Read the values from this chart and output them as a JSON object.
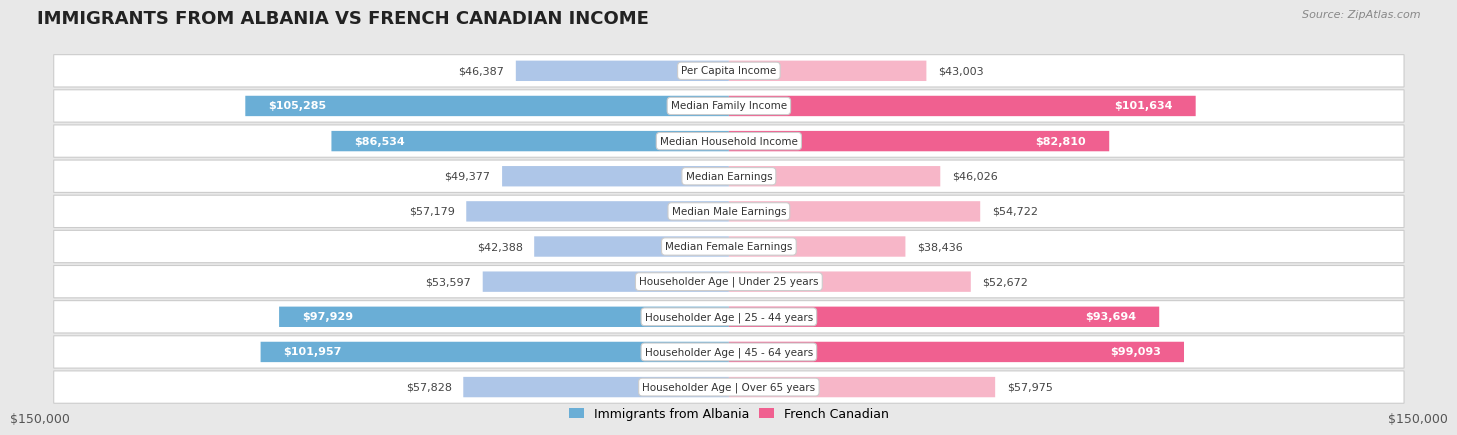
{
  "title": "IMMIGRANTS FROM ALBANIA VS FRENCH CANADIAN INCOME",
  "source": "Source: ZipAtlas.com",
  "categories": [
    "Per Capita Income",
    "Median Family Income",
    "Median Household Income",
    "Median Earnings",
    "Median Male Earnings",
    "Median Female Earnings",
    "Householder Age | Under 25 years",
    "Householder Age | 25 - 44 years",
    "Householder Age | 45 - 64 years",
    "Householder Age | Over 65 years"
  ],
  "albania_values": [
    46387,
    105285,
    86534,
    49377,
    57179,
    42388,
    53597,
    97929,
    101957,
    57828
  ],
  "french_canadian_values": [
    43003,
    101634,
    82810,
    46026,
    54722,
    38436,
    52672,
    93694,
    99093,
    57975
  ],
  "albania_color_light": "#aec6e8",
  "albania_color_dark": "#6aaed6",
  "french_color_light": "#f7b6c8",
  "french_color_dark": "#f06090",
  "albania_dark_threshold": 60000,
  "french_dark_threshold": 60000,
  "bar_height": 0.58,
  "xlim": 150000,
  "x_tick_label_left": "$150,000",
  "x_tick_label_right": "$150,000",
  "background_color": "#e8e8e8",
  "row_bg_color": "#ffffff",
  "label_bg_color": "#ffffff",
  "label_border_color": "#cccccc",
  "legend_albania": "Immigrants from Albania",
  "legend_french": "French Canadian",
  "title_fontsize": 13,
  "source_fontsize": 8,
  "value_fontsize": 8,
  "category_fontsize": 7.5
}
